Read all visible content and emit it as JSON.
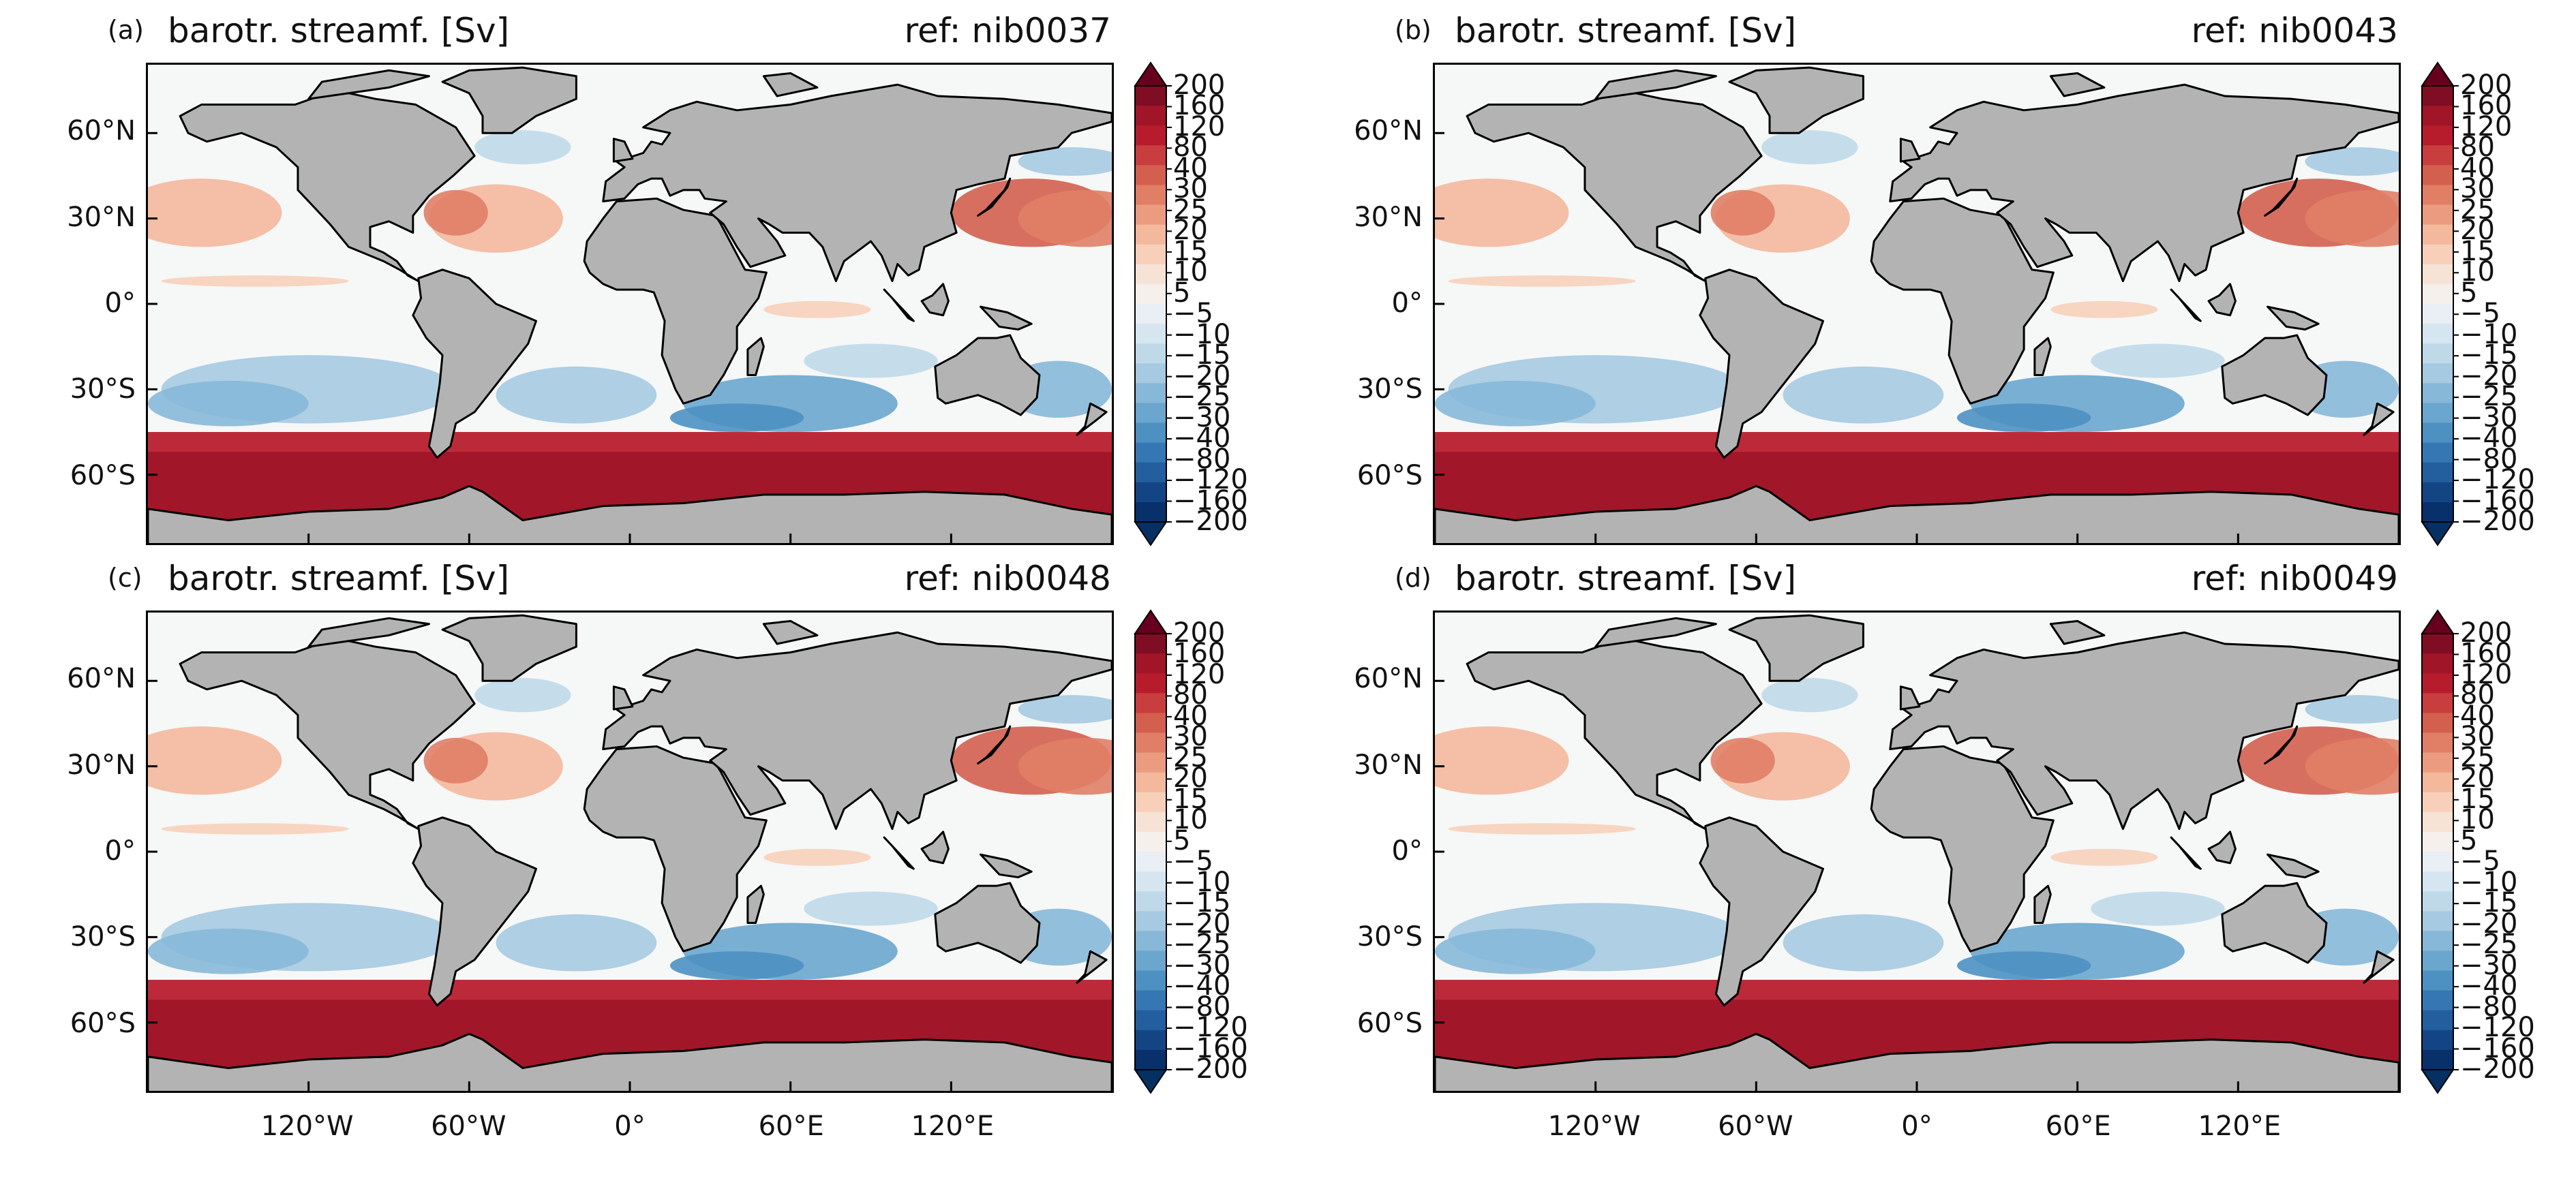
{
  "figure": {
    "panels": [
      {
        "letter": "(a)",
        "title": "barotr. streamf. [Sv]",
        "ref": "ref: nib0037"
      },
      {
        "letter": "(b)",
        "title": "barotr. streamf. [Sv]",
        "ref": "ref: nib0043"
      },
      {
        "letter": "(c)",
        "title": "barotr. streamf. [Sv]",
        "ref": "ref: nib0048"
      },
      {
        "letter": "(d)",
        "title": "barotr. streamf. [Sv]",
        "ref": "ref: nib0049"
      }
    ],
    "lat_ticks": [
      "60°N",
      "30°N",
      "0°",
      "30°S",
      "60°S"
    ],
    "lon_ticks": [
      "120°W",
      "60°W",
      "0°",
      "60°E",
      "120°E"
    ],
    "colorbar": {
      "levels": [
        "200",
        "160",
        "120",
        "80",
        "40",
        "30",
        "25",
        "20",
        "15",
        "10",
        "5",
        "−5",
        "−10",
        "−15",
        "−20",
        "−25",
        "−30",
        "−40",
        "−80",
        "−120",
        "−160",
        "−200"
      ],
      "colors": [
        "#7f0d23",
        "#a01528",
        "#b71c2c",
        "#c83d3d",
        "#d35f4e",
        "#e07e66",
        "#eb9c80",
        "#f4b89c",
        "#f8d0ba",
        "#f7e2d6",
        "#f5f0ec",
        "#e9eff4",
        "#d6e6f0",
        "#c0d9e9",
        "#a6cae1",
        "#87b8d8",
        "#6aa6ce",
        "#4d91c2",
        "#3577b3",
        "#235f9f",
        "#134584",
        "#08306b"
      ],
      "max_color": "#67001f",
      "min_color": "#053061",
      "extend": "both"
    },
    "colors": {
      "land": "#b3b3b3",
      "ocean_neutral": "#f6f7f7"
    }
  }
}
